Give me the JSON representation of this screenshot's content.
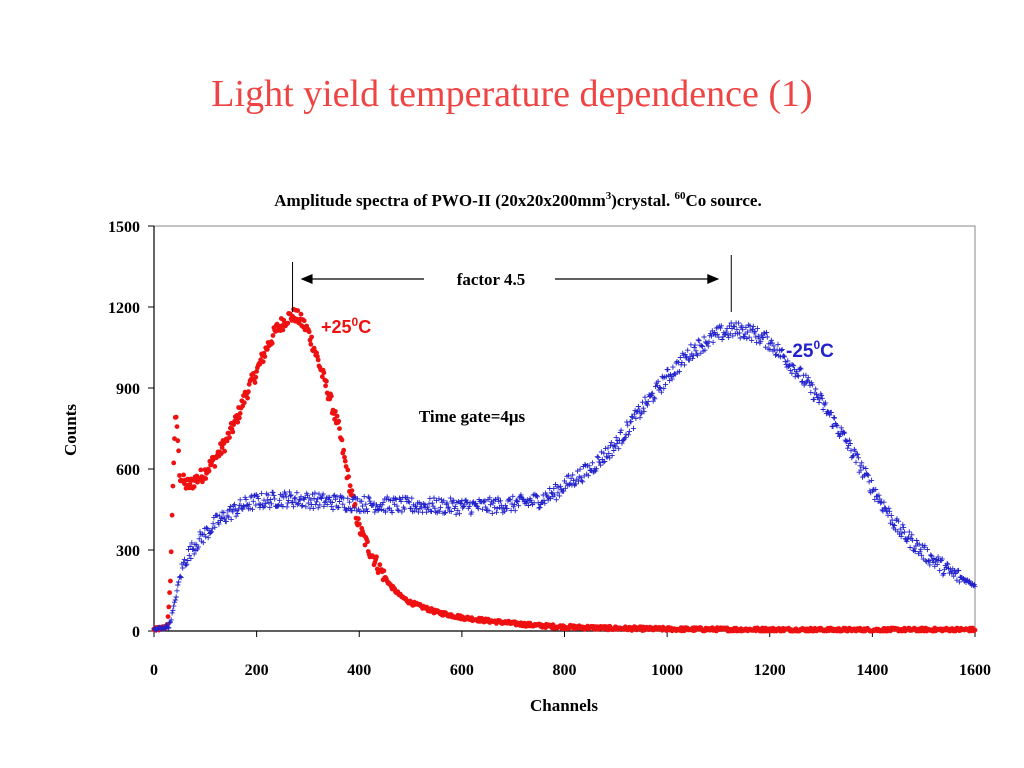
{
  "slide": {
    "title": "Light yield temperature dependence (1)"
  },
  "chart_data": {
    "type": "scatter",
    "title_parts": {
      "a": "Amplitude spectra of PWO-II (20x20x200mm",
      "sup1": "3",
      "b": ")crystal. ",
      "sup2": "60",
      "c": "Co source."
    },
    "xlabel": "Channels",
    "ylabel": "Counts",
    "xlim": [
      0,
      1600
    ],
    "ylim": [
      0,
      1500
    ],
    "xticks": [
      "0",
      "200",
      "400",
      "600",
      "800",
      "1000",
      "1200",
      "1400",
      "1600"
    ],
    "yticks": [
      "0",
      "300",
      "600",
      "900",
      "1200",
      "1500"
    ],
    "grid": false,
    "series": [
      {
        "label_parts": {
          "a": "+25",
          "sup": "0",
          "b": "C"
        },
        "marker": "dot",
        "color": "#ee1111",
        "points": [
          [
            0,
            5
          ],
          [
            10,
            8
          ],
          [
            20,
            12
          ],
          [
            25,
            20
          ],
          [
            28,
            60
          ],
          [
            30,
            120
          ],
          [
            33,
            250
          ],
          [
            35,
            400
          ],
          [
            37,
            560
          ],
          [
            40,
            720
          ],
          [
            42,
            780
          ],
          [
            45,
            760
          ],
          [
            48,
            650
          ],
          [
            50,
            580
          ],
          [
            55,
            560
          ],
          [
            60,
            545
          ],
          [
            70,
            540
          ],
          [
            80,
            560
          ],
          [
            90,
            570
          ],
          [
            100,
            590
          ],
          [
            120,
            640
          ],
          [
            140,
            700
          ],
          [
            160,
            780
          ],
          [
            180,
            880
          ],
          [
            200,
            960
          ],
          [
            220,
            1050
          ],
          [
            240,
            1120
          ],
          [
            260,
            1160
          ],
          [
            275,
            1170
          ],
          [
            290,
            1140
          ],
          [
            300,
            1110
          ],
          [
            310,
            1060
          ],
          [
            320,
            1000
          ],
          [
            340,
            880
          ],
          [
            360,
            750
          ],
          [
            380,
            550
          ],
          [
            400,
            380
          ],
          [
            420,
            300
          ],
          [
            440,
            230
          ],
          [
            460,
            170
          ],
          [
            480,
            130
          ],
          [
            500,
            105
          ],
          [
            550,
            70
          ],
          [
            600,
            50
          ],
          [
            650,
            38
          ],
          [
            700,
            28
          ],
          [
            750,
            20
          ],
          [
            800,
            15
          ],
          [
            900,
            10
          ],
          [
            1000,
            7
          ],
          [
            1200,
            5
          ],
          [
            1400,
            4
          ],
          [
            1600,
            5
          ]
        ]
      },
      {
        "label_parts": {
          "a": "-25",
          "sup": "0",
          "b": "C"
        },
        "marker": "plus",
        "color": "#2222cc",
        "points": [
          [
            0,
            5
          ],
          [
            15,
            10
          ],
          [
            30,
            20
          ],
          [
            40,
            100
          ],
          [
            50,
            200
          ],
          [
            60,
            260
          ],
          [
            80,
            320
          ],
          [
            100,
            360
          ],
          [
            120,
            400
          ],
          [
            150,
            440
          ],
          [
            180,
            470
          ],
          [
            200,
            480
          ],
          [
            250,
            490
          ],
          [
            300,
            485
          ],
          [
            350,
            478
          ],
          [
            400,
            472
          ],
          [
            450,
            468
          ],
          [
            500,
            465
          ],
          [
            550,
            463
          ],
          [
            600,
            462
          ],
          [
            650,
            463
          ],
          [
            700,
            470
          ],
          [
            750,
            485
          ],
          [
            780,
            510
          ],
          [
            800,
            540
          ],
          [
            850,
            600
          ],
          [
            900,
            690
          ],
          [
            950,
            820
          ],
          [
            1000,
            940
          ],
          [
            1050,
            1040
          ],
          [
            1100,
            1100
          ],
          [
            1130,
            1115
          ],
          [
            1160,
            1110
          ],
          [
            1200,
            1070
          ],
          [
            1250,
            970
          ],
          [
            1300,
            850
          ],
          [
            1350,
            700
          ],
          [
            1400,
            530
          ],
          [
            1450,
            380
          ],
          [
            1500,
            290
          ],
          [
            1550,
            220
          ],
          [
            1600,
            170
          ]
        ]
      }
    ],
    "annotations": {
      "factor": "factor 4.5",
      "factor_from_x": 270,
      "factor_to_x": 1125,
      "time_gate": "Time gate=4μs"
    }
  }
}
